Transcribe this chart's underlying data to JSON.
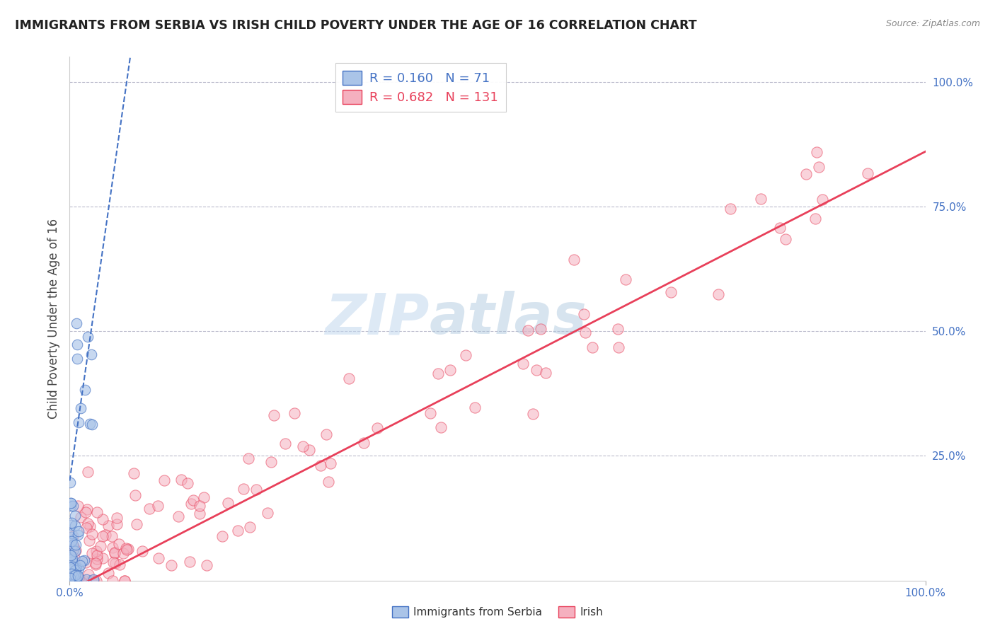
{
  "title": "IMMIGRANTS FROM SERBIA VS IRISH CHILD POVERTY UNDER THE AGE OF 16 CORRELATION CHART",
  "source": "Source: ZipAtlas.com",
  "ylabel": "Child Poverty Under the Age of 16",
  "legend_labels": [
    "Immigrants from Serbia",
    "Irish"
  ],
  "r_serbia": 0.16,
  "n_serbia": 71,
  "r_irish": 0.682,
  "n_irish": 131,
  "serbia_color": "#aac4e8",
  "irish_color": "#f5b0bf",
  "serbia_line_color": "#4472c4",
  "irish_line_color": "#e8405a",
  "serbia_edge_color": "#4472c4",
  "irish_edge_color": "#e8405a",
  "background_color": "#ffffff",
  "grid_color": "#bbbbcc",
  "title_color": "#222222",
  "tick_label_color": "#4472c4",
  "watermark_zip": "ZIP",
  "watermark_atlas": "atlas",
  "xlim": [
    0.0,
    1.0
  ],
  "ylim": [
    0.0,
    1.05
  ],
  "yticks_right": [
    0.0,
    0.25,
    0.5,
    0.75,
    1.0
  ],
  "ytick_labels_right": [
    "",
    "25.0%",
    "50.0%",
    "75.0%",
    "100.0%"
  ],
  "grid_yticks": [
    0.25,
    0.5,
    0.75,
    1.0
  ]
}
